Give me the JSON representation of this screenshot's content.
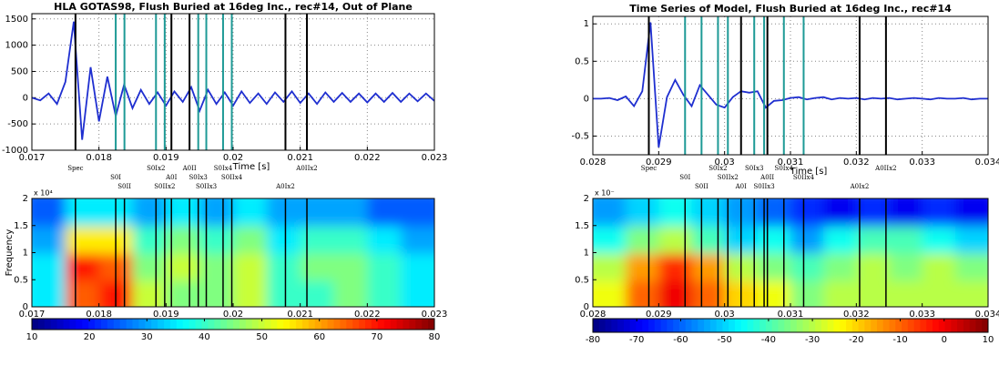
{
  "chart_data": [
    {
      "type": "line",
      "title": "HLA GOTAS98, Flush Buried at 16deg Inc., rec#14, Out of Plane",
      "xlabel": "Time [s]",
      "color": "#1f2fd0",
      "grid": true,
      "xlim": [
        0.017,
        0.023
      ],
      "xticks": [
        0.017,
        0.018,
        0.019,
        0.02,
        0.021,
        0.022,
        0.023
      ],
      "ylim": [
        -1000,
        1600
      ],
      "yticks": [
        -1000,
        -500,
        0,
        500,
        1000,
        1500
      ],
      "x": [
        0.017,
        0.017125,
        0.01725,
        0.017375,
        0.0175,
        0.017625,
        0.01775,
        0.017875,
        0.018,
        0.018125,
        0.01825,
        0.018375,
        0.0185,
        0.018625,
        0.01875,
        0.018875,
        0.019,
        0.019125,
        0.01925,
        0.019375,
        0.0195,
        0.019625,
        0.01975,
        0.019875,
        0.02,
        0.020125,
        0.02025,
        0.020375,
        0.0205,
        0.020625,
        0.02075,
        0.020875,
        0.021,
        0.021125,
        0.02125,
        0.021375,
        0.0215,
        0.021625,
        0.02175,
        0.021875,
        0.022,
        0.022125,
        0.02225,
        0.022375,
        0.0225,
        0.022625,
        0.02275,
        0.022875,
        0.023
      ],
      "values": [
        0,
        -50,
        80,
        -120,
        300,
        1450,
        -800,
        580,
        -450,
        400,
        -350,
        250,
        -200,
        150,
        -120,
        100,
        -150,
        120,
        -80,
        200,
        -250,
        150,
        -120,
        100,
        -150,
        120,
        -100,
        80,
        -120,
        100,
        -80,
        120,
        -100,
        80,
        -120,
        100,
        -80,
        90,
        -80,
        80,
        -90,
        80,
        -80,
        90,
        -80,
        80,
        -70,
        80,
        -60
      ],
      "markers": [
        {
          "label": "Spec",
          "x": 0.01765,
          "color": "#000000"
        },
        {
          "label": "S0I",
          "x": 0.01825,
          "color": "#1e9a96"
        },
        {
          "label": "S0II",
          "x": 0.01838,
          "color": "#1e9a96"
        },
        {
          "label": "S0Ix2",
          "x": 0.01885,
          "color": "#1e9a96"
        },
        {
          "label": "A0I",
          "x": 0.01908,
          "color": "#000000"
        },
        {
          "label": "S0IIx2",
          "x": 0.01898,
          "color": "#1e9a96"
        },
        {
          "label": "A0II",
          "x": 0.01935,
          "color": "#000000"
        },
        {
          "label": "S0Ix3",
          "x": 0.01948,
          "color": "#1e9a96"
        },
        {
          "label": "S0IIx3",
          "x": 0.0196,
          "color": "#1e9a96"
        },
        {
          "label": "S0Ix4",
          "x": 0.01985,
          "color": "#1e9a96"
        },
        {
          "label": "S0IIx4",
          "x": 0.01998,
          "color": "#1e9a96"
        },
        {
          "label": "A0Ix2",
          "x": 0.02078,
          "color": "#000000"
        },
        {
          "label": "A0IIx2",
          "x": 0.0211,
          "color": "#000000"
        }
      ]
    },
    {
      "type": "heatmap",
      "ylabel": "Frequency",
      "y_scale_label": "x 10⁴",
      "xlim": [
        0.017,
        0.023
      ],
      "xticks": [
        0.017,
        0.018,
        0.019,
        0.02,
        0.021,
        0.022,
        0.023
      ],
      "ylim": [
        0,
        2
      ],
      "yticks": [
        0,
        0.5,
        1,
        1.5,
        2
      ],
      "values": [
        [
          35,
          65,
          70,
          50,
          45,
          45,
          50,
          40,
          40,
          45,
          40,
          35
        ],
        [
          35,
          70,
          65,
          45,
          50,
          45,
          50,
          40,
          45,
          45,
          40,
          35
        ],
        [
          30,
          55,
          55,
          40,
          45,
          40,
          45,
          35,
          40,
          40,
          35,
          30
        ],
        [
          25,
          35,
          35,
          30,
          35,
          30,
          35,
          30,
          30,
          30,
          25,
          25
        ]
      ],
      "clim": [
        10,
        80
      ],
      "cticks": [
        10,
        20,
        30,
        40,
        50,
        60,
        70,
        80
      ]
    },
    {
      "type": "line",
      "title": "Time Series of Model, Flush Buried at 16deg Inc., rec#14",
      "xlabel": "Time [s]",
      "color": "#1f2fd0",
      "grid": true,
      "xlim": [
        0.028,
        0.034
      ],
      "xticks": [
        0.028,
        0.029,
        0.03,
        0.031,
        0.032,
        0.033,
        0.034
      ],
      "ylim": [
        -0.75,
        1.1
      ],
      "yticks": [
        -0.5,
        0,
        0.5,
        1
      ],
      "x": [
        0.028,
        0.028125,
        0.02825,
        0.028375,
        0.0285,
        0.028625,
        0.02875,
        0.028875,
        0.029,
        0.029125,
        0.02925,
        0.029375,
        0.0295,
        0.029625,
        0.02975,
        0.029875,
        0.03,
        0.030125,
        0.03025,
        0.030375,
        0.0305,
        0.030625,
        0.03075,
        0.030875,
        0.031,
        0.031125,
        0.03125,
        0.031375,
        0.0315,
        0.031625,
        0.03175,
        0.031875,
        0.032,
        0.032125,
        0.03225,
        0.032375,
        0.0325,
        0.032625,
        0.03275,
        0.032875,
        0.033,
        0.033125,
        0.03325,
        0.033375,
        0.0335,
        0.033625,
        0.03375,
        0.033875,
        0.034
      ],
      "values": [
        0,
        0,
        0.01,
        -0.02,
        0.03,
        -0.1,
        0.1,
        1.02,
        -0.65,
        0.02,
        0.25,
        0.05,
        -0.1,
        0.18,
        0.05,
        -0.08,
        -0.12,
        0.02,
        0.1,
        0.08,
        0.1,
        -0.12,
        -0.03,
        -0.02,
        0.01,
        0.02,
        -0.01,
        0.01,
        0.02,
        -0.01,
        0.01,
        0,
        0.01,
        -0.01,
        0.01,
        0,
        0.01,
        -0.01,
        0,
        0.01,
        0,
        -0.01,
        0.01,
        0,
        0,
        0.01,
        -0.01,
        0,
        0
      ],
      "markers": [
        {
          "label": "Spec",
          "x": 0.02885,
          "color": "#000000"
        },
        {
          "label": "S0I",
          "x": 0.0294,
          "color": "#1e9a96"
        },
        {
          "label": "S0II",
          "x": 0.02965,
          "color": "#1e9a96"
        },
        {
          "label": "S0Ix2",
          "x": 0.0299,
          "color": "#1e9a96"
        },
        {
          "label": "S0IIx2",
          "x": 0.03005,
          "color": "#1e9a96"
        },
        {
          "label": "A0I",
          "x": 0.03025,
          "color": "#000000"
        },
        {
          "label": "S0Ix3",
          "x": 0.03045,
          "color": "#1e9a96"
        },
        {
          "label": "A0II",
          "x": 0.03065,
          "color": "#000000"
        },
        {
          "label": "S0IIx3",
          "x": 0.0306,
          "color": "#1e9a96"
        },
        {
          "label": "S0Ix4",
          "x": 0.0309,
          "color": "#1e9a96"
        },
        {
          "label": "S0IIx4",
          "x": 0.0312,
          "color": "#1e9a96"
        },
        {
          "label": "A0Ix2",
          "x": 0.03205,
          "color": "#000000"
        },
        {
          "label": "A0IIx2",
          "x": 0.03245,
          "color": "#000000"
        }
      ]
    },
    {
      "type": "heatmap",
      "y_scale_label": "x 10⁻",
      "xlim": [
        0.028,
        0.034
      ],
      "xticks": [
        0.028,
        0.029,
        0.03,
        0.031,
        0.032,
        0.033,
        0.034
      ],
      "ylim": [
        0,
        2
      ],
      "yticks": [
        0,
        0.5,
        1,
        1.5,
        2
      ],
      "values": [
        [
          -25,
          -10,
          0,
          -10,
          -20,
          -25,
          -35,
          -30,
          -30,
          -30,
          -30,
          -30
        ],
        [
          -30,
          -15,
          -5,
          -15,
          -30,
          -35,
          -40,
          -35,
          -30,
          -35,
          -30,
          -35
        ],
        [
          -45,
          -35,
          -30,
          -40,
          -50,
          -45,
          -55,
          -45,
          -40,
          -40,
          -45,
          -50
        ],
        [
          -55,
          -50,
          -45,
          -50,
          -55,
          -60,
          -65,
          -70,
          -65,
          -70,
          -65,
          -70
        ]
      ],
      "clim": [
        -80,
        10
      ],
      "cticks": [
        -80,
        -70,
        -60,
        -50,
        -40,
        -30,
        -20,
        -10,
        0,
        10
      ]
    }
  ]
}
